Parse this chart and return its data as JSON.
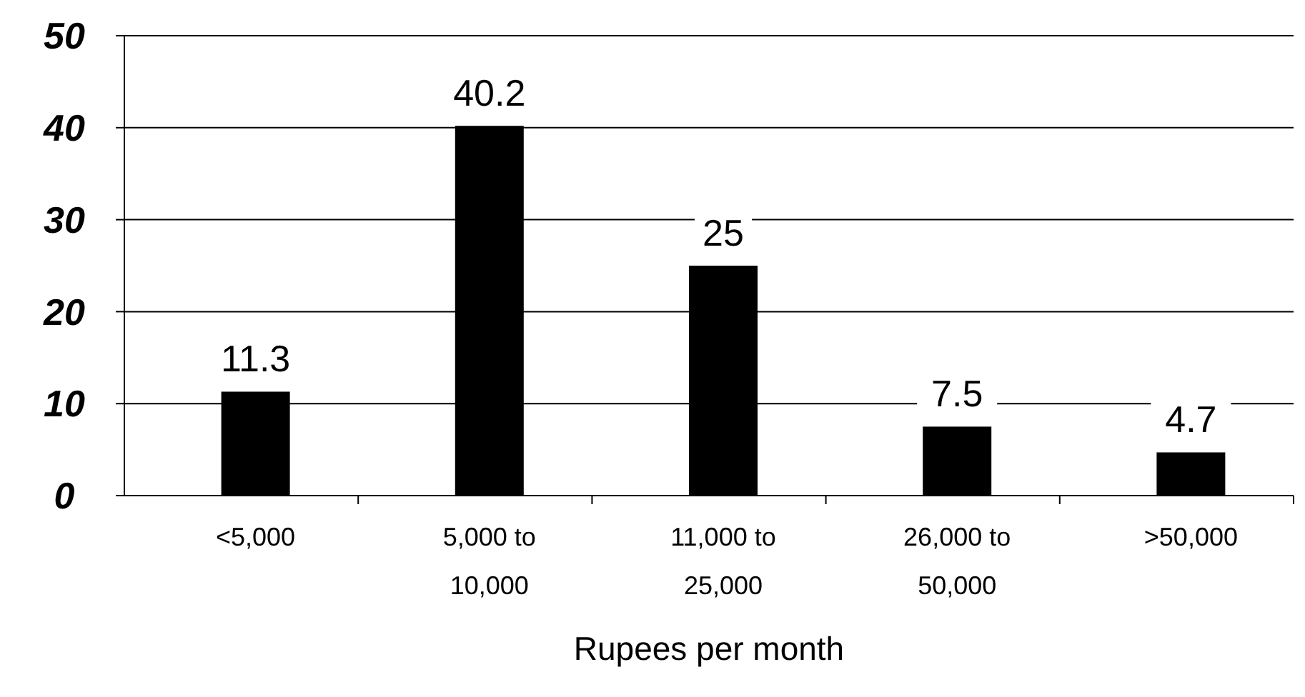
{
  "chart_data": {
    "type": "bar",
    "xlabel": "Rupees per month",
    "categories": [
      "<5,000",
      "5,000 to 10,000",
      "11,000 to 25,000",
      "26,000 to 50,000",
      ">50,000"
    ],
    "values": [
      11.3,
      40.2,
      25,
      7.5,
      4.7
    ],
    "color": "#000000",
    "ylim": [
      0,
      50
    ],
    "yticks": [
      0,
      10,
      20,
      30,
      40,
      50
    ],
    "grid": "y",
    "data_labels": true
  }
}
